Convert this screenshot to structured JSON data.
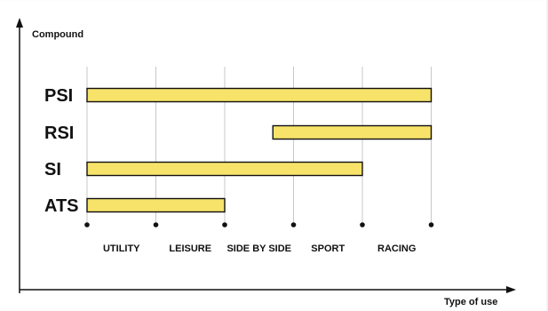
{
  "chart_data": {
    "type": "bar",
    "orientation": "horizontal-range",
    "ylabel": "Compound",
    "xlabel": "Type of use",
    "x_categories": [
      "UTILITY",
      "LEISURE",
      "SIDE BY SIDE",
      "SPORT",
      "RACING"
    ],
    "y_categories": [
      "PSI",
      "RSI",
      "SI",
      "ATS"
    ],
    "ranges": [
      {
        "category": "PSI",
        "start": 0,
        "end": 5
      },
      {
        "category": "RSI",
        "start": 2.7,
        "end": 5
      },
      {
        "category": "SI",
        "start": 0,
        "end": 4
      },
      {
        "category": "ATS",
        "start": 0,
        "end": 2
      }
    ],
    "grid": true,
    "colors": {
      "bar_fill": "#f7e36a",
      "bar_stroke": "#111111",
      "grid": "#c8c8c8",
      "axis": "#111111"
    }
  }
}
